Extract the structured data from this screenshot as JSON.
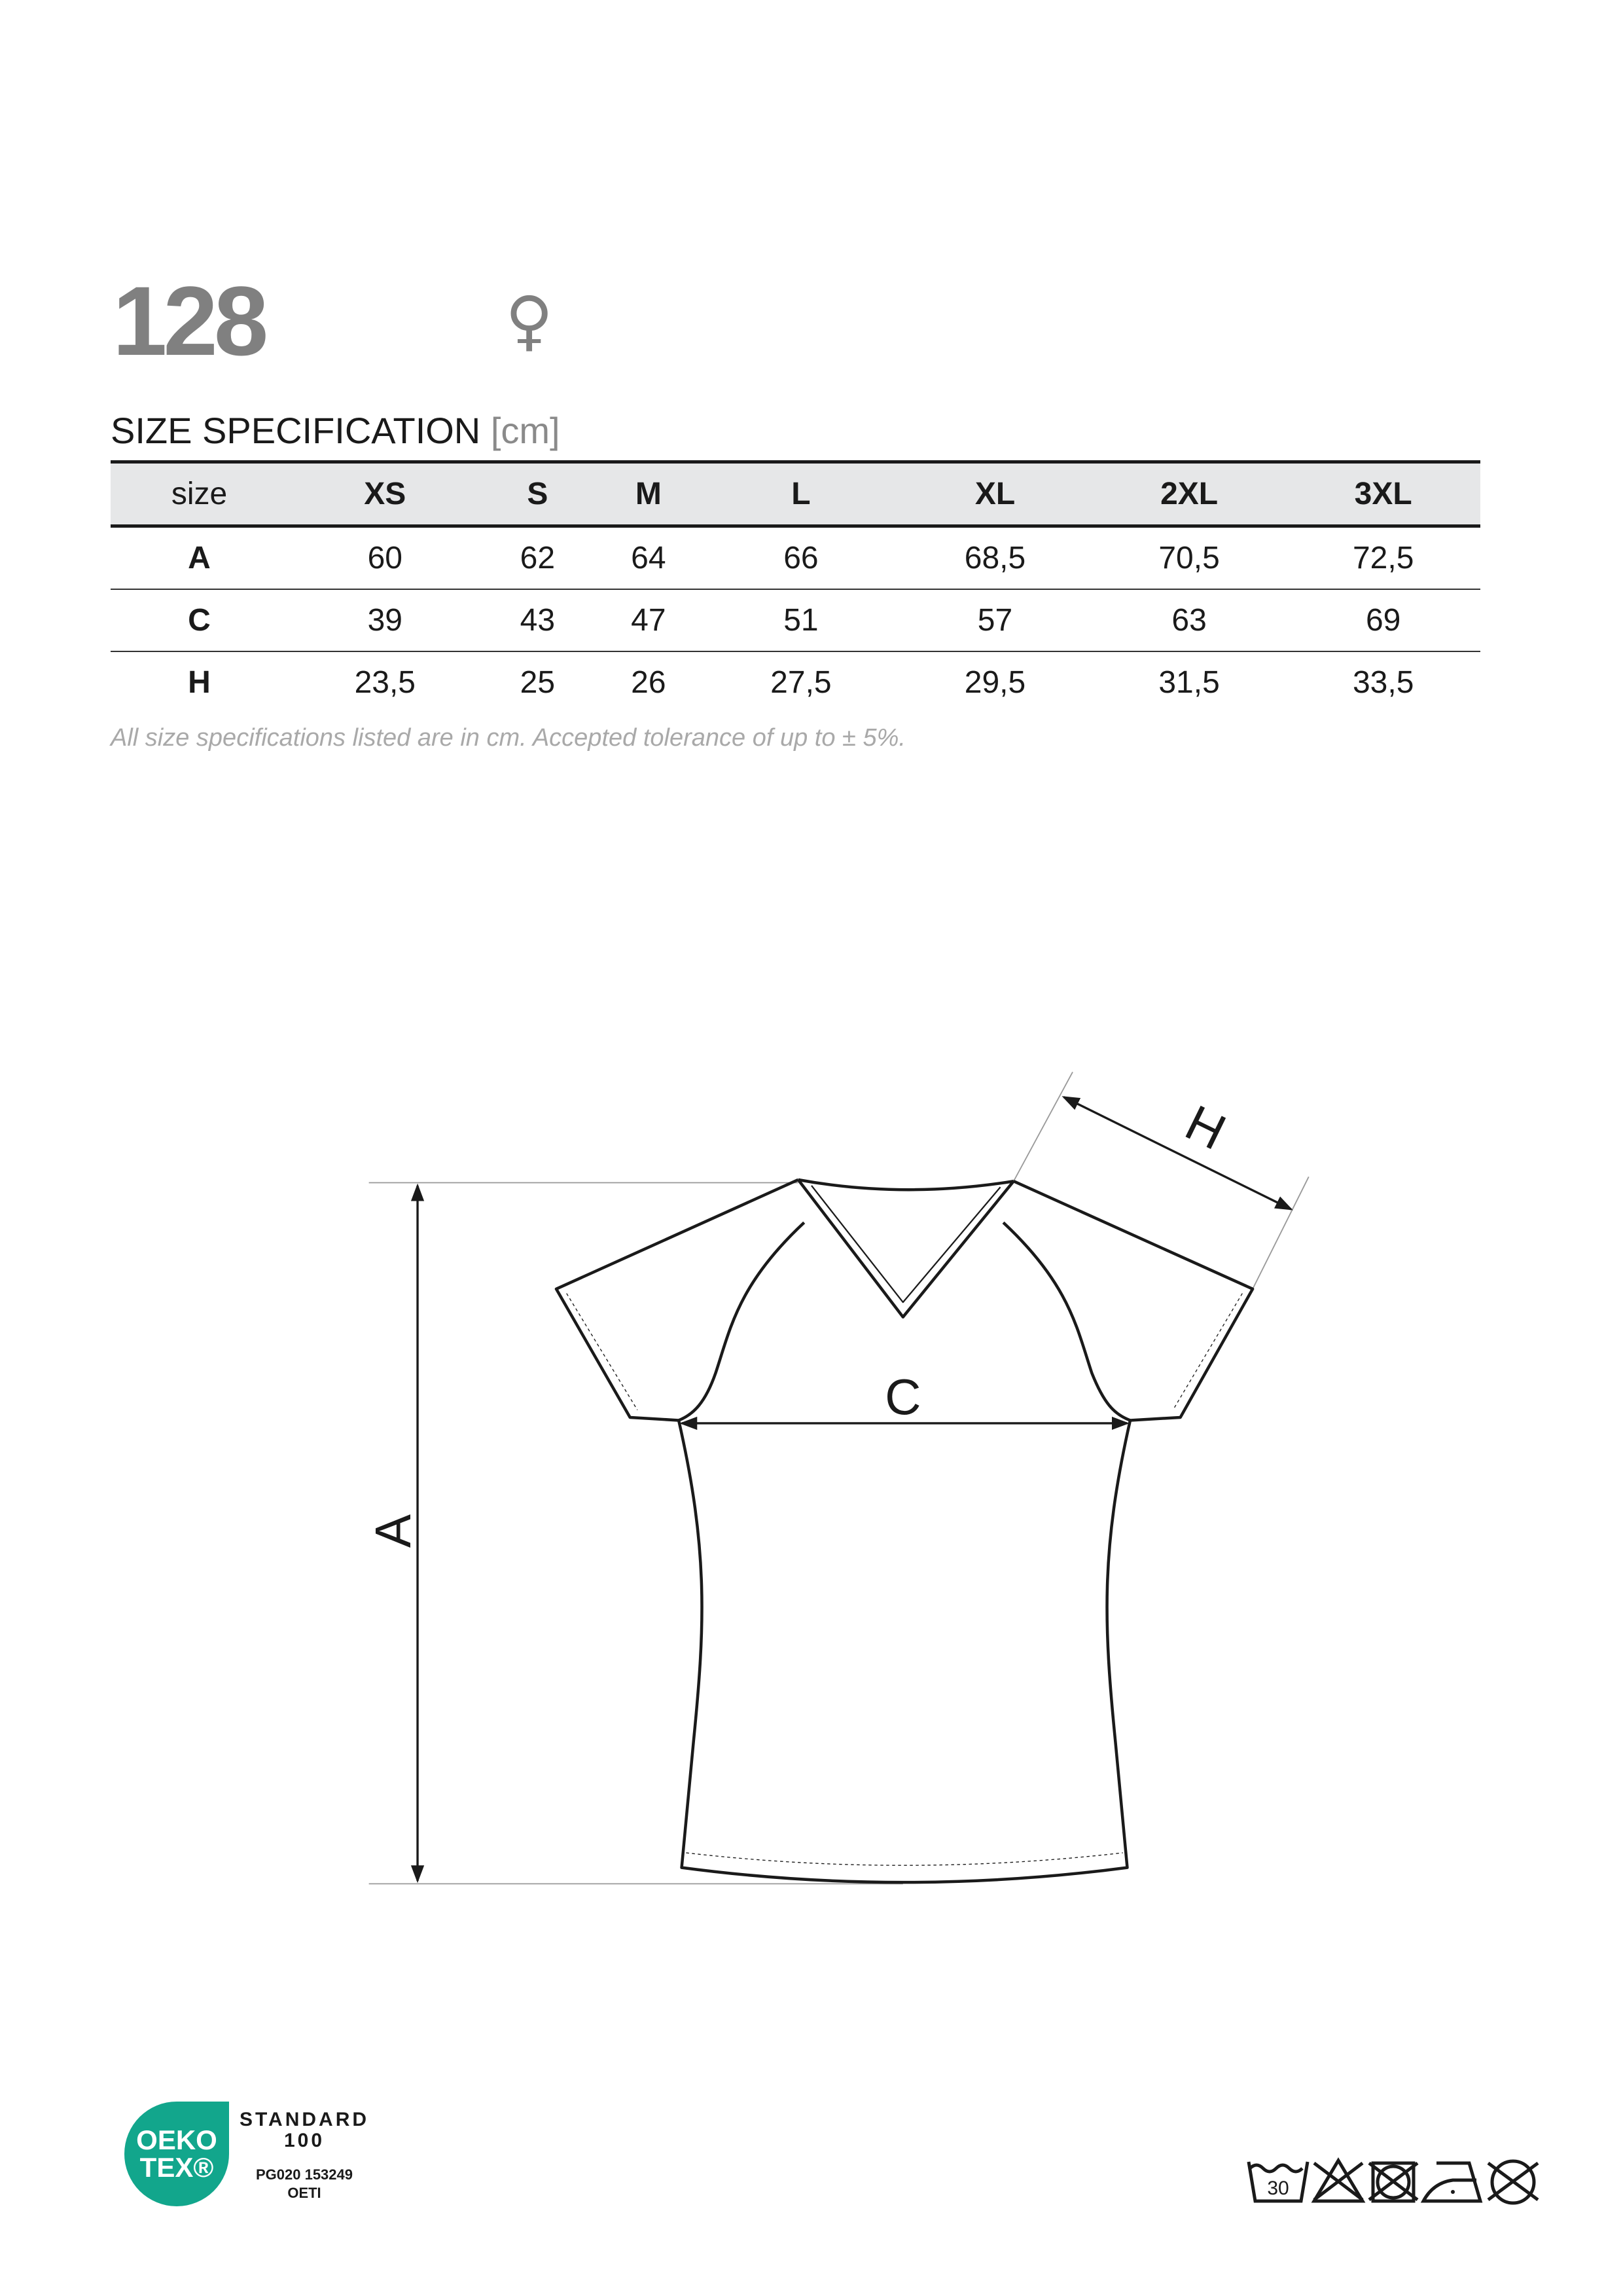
{
  "header": {
    "model": "128",
    "gender_symbol": "♀",
    "gender_icon": "female-icon"
  },
  "spec": {
    "title": "SIZE SPECIFICATION",
    "unit": "[cm]",
    "columns": [
      "size",
      "XS",
      "S",
      "M",
      "L",
      "XL",
      "2XL",
      "3XL"
    ],
    "rows": [
      {
        "label": "A",
        "values": [
          "60",
          "62",
          "64",
          "66",
          "68,5",
          "70,5",
          "72,5"
        ]
      },
      {
        "label": "C",
        "values": [
          "39",
          "43",
          "47",
          "51",
          "57",
          "63",
          "69"
        ]
      },
      {
        "label": "H",
        "values": [
          "23,5",
          "25",
          "26",
          "27,5",
          "29,5",
          "31,5",
          "33,5"
        ]
      }
    ],
    "note": "All size specifications listed are in cm. Accepted tolerance of up to ± 5%."
  },
  "diagram": {
    "labels": {
      "a": "A",
      "c": "C",
      "h": "H"
    }
  },
  "certification": {
    "logo_line1": "OEKO",
    "logo_line2": "TEX®",
    "standard": "STANDARD",
    "standard_number": "100",
    "code": "PG020 153249",
    "institute": "OETI",
    "brand_color": "#12a68c"
  },
  "care": {
    "wash_temp": "30",
    "icons": [
      "wash-30-icon",
      "no-bleach-icon",
      "no-tumble-dry-icon",
      "iron-low-icon",
      "no-dry-clean-icon"
    ]
  }
}
